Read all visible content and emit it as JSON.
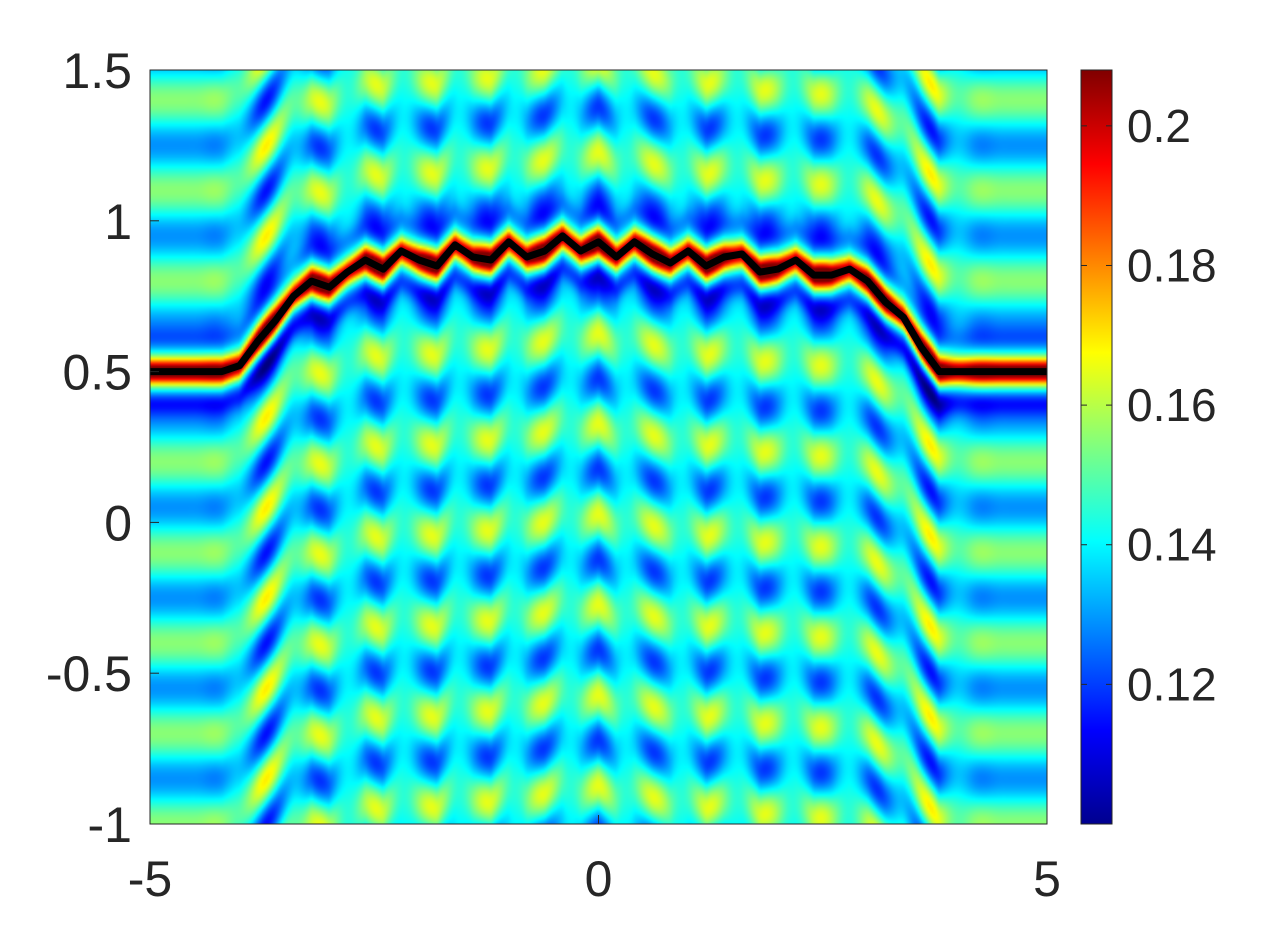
{
  "chart_data": {
    "type": "heatmap",
    "title": "",
    "xlabel": "",
    "ylabel": "",
    "xlim": [
      -5,
      5
    ],
    "ylim": [
      -1,
      1.5
    ],
    "x_ticks": [
      -5,
      0,
      5
    ],
    "x_tick_labels": [
      "-5",
      "0",
      "5"
    ],
    "y_ticks": [
      -1,
      -0.5,
      0,
      0.5,
      1,
      1.5
    ],
    "y_tick_labels": [
      "-1",
      "-0.5",
      "0",
      "0.5",
      "1",
      "1.5"
    ],
    "colormap": "jet",
    "colorbar": {
      "range": [
        0.1,
        0.208
      ],
      "ticks": [
        0.12,
        0.14,
        0.16,
        0.18,
        0.2
      ],
      "tick_labels": [
        "0.12",
        "0.14",
        "0.16",
        "0.18",
        "0.2"
      ],
      "placement": "right"
    },
    "field_description_points": {
      "baseline": 0.5,
      "plateau_height": 0.9,
      "ridge_value": 0.205,
      "background_value": 0.14
    },
    "series": [
      {
        "type": "line",
        "color": "#000000",
        "x": [
          -5,
          -4.2,
          -4.0,
          -3.8,
          -3.6,
          -3.4,
          -3.2,
          -3.0,
          -2.8,
          -2.6,
          -2.4,
          -2.2,
          -2.0,
          -1.8,
          -1.6,
          -1.4,
          -1.2,
          -1.0,
          -0.8,
          -0.6,
          -0.4,
          -0.2,
          0.0,
          0.2,
          0.4,
          0.6,
          0.8,
          1.0,
          1.2,
          1.4,
          1.6,
          1.8,
          2.0,
          2.2,
          2.4,
          2.6,
          2.8,
          3.0,
          3.2,
          3.4,
          3.6,
          3.8,
          4.0,
          4.2,
          5
        ],
        "y": [
          0.5,
          0.5,
          0.52,
          0.6,
          0.67,
          0.75,
          0.8,
          0.78,
          0.83,
          0.87,
          0.84,
          0.9,
          0.87,
          0.85,
          0.92,
          0.88,
          0.87,
          0.93,
          0.88,
          0.9,
          0.95,
          0.9,
          0.93,
          0.88,
          0.93,
          0.89,
          0.86,
          0.9,
          0.85,
          0.88,
          0.89,
          0.83,
          0.84,
          0.87,
          0.82,
          0.82,
          0.84,
          0.8,
          0.73,
          0.68,
          0.58,
          0.5,
          0.5,
          0.5,
          0.5
        ]
      }
    ]
  },
  "colors": {
    "curve": "#000000",
    "axis": "#262626"
  }
}
